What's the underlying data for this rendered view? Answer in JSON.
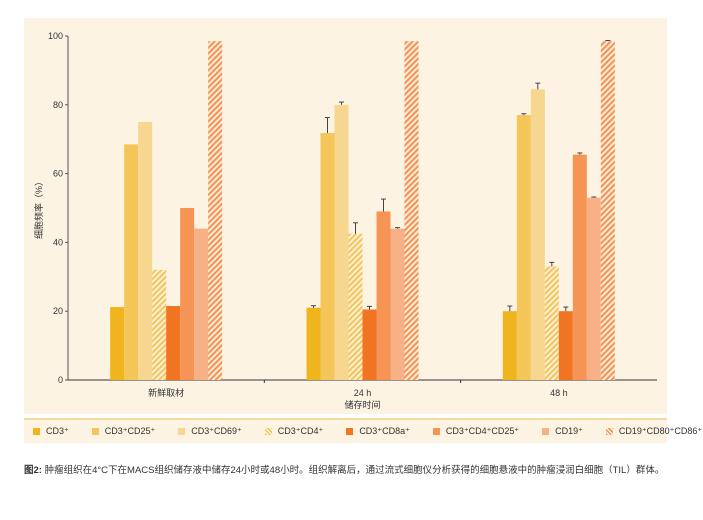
{
  "chart_data": {
    "type": "bar",
    "ylabel": "细胞频率（%）",
    "xlabel": "储存时间",
    "ylim": [
      0,
      100
    ],
    "yticks": [
      "0",
      "20",
      "40",
      "60",
      "80",
      "100"
    ],
    "categories": [
      "新鲜取材",
      "24 h",
      "48 h"
    ],
    "series": [
      {
        "name": "CD3⁺",
        "color": "#f0b41e",
        "hatch": false,
        "values": [
          21.2,
          21,
          20
        ],
        "errors": [
          0,
          0.6,
          1.5
        ]
      },
      {
        "name": "CD3⁺CD25⁺",
        "color": "#f4c65a",
        "hatch": false,
        "values": [
          68.5,
          71.8,
          77
        ],
        "errors": [
          0,
          4.5,
          0.4
        ]
      },
      {
        "name": "CD3⁺CD69⁺",
        "color": "#f7d690",
        "hatch": false,
        "values": [
          75,
          80,
          84.5
        ],
        "errors": [
          0,
          0.8,
          1.8
        ]
      },
      {
        "name": "CD3⁺CD4⁺",
        "color": "#f4c65a",
        "hatch": true,
        "values": [
          32,
          42.5,
          33
        ],
        "errors": [
          0,
          3.2,
          1.2
        ]
      },
      {
        "name": "CD3⁺CD8a⁺",
        "color": "#f07422",
        "hatch": false,
        "values": [
          21.5,
          20.5,
          20
        ],
        "errors": [
          0,
          0.9,
          1.2
        ]
      },
      {
        "name": "CD3⁺CD4⁺CD25⁺",
        "color": "#f59455",
        "hatch": false,
        "values": [
          50,
          49,
          65.5
        ],
        "errors": [
          0,
          3.6,
          0.5
        ]
      },
      {
        "name": "CD19⁺",
        "color": "#f8b187",
        "hatch": false,
        "values": [
          44,
          44,
          53
        ],
        "errors": [
          0,
          0.3,
          0.2
        ]
      },
      {
        "name": "CD19⁺CD80⁺CD86⁺",
        "color": "#f59455",
        "hatch": true,
        "values": [
          98.5,
          98.5,
          98.5
        ],
        "errors": [
          0,
          0,
          0.2
        ]
      }
    ]
  },
  "caption": {
    "label": "图2:",
    "text": " 肿瘤组织在4°C下在MACS组织储存液中储存24小时或48小时。组织解离后，通过流式细胞仪分析获得的细胞悬液中的肿瘤浸润白细胞（TIL）群体。"
  }
}
